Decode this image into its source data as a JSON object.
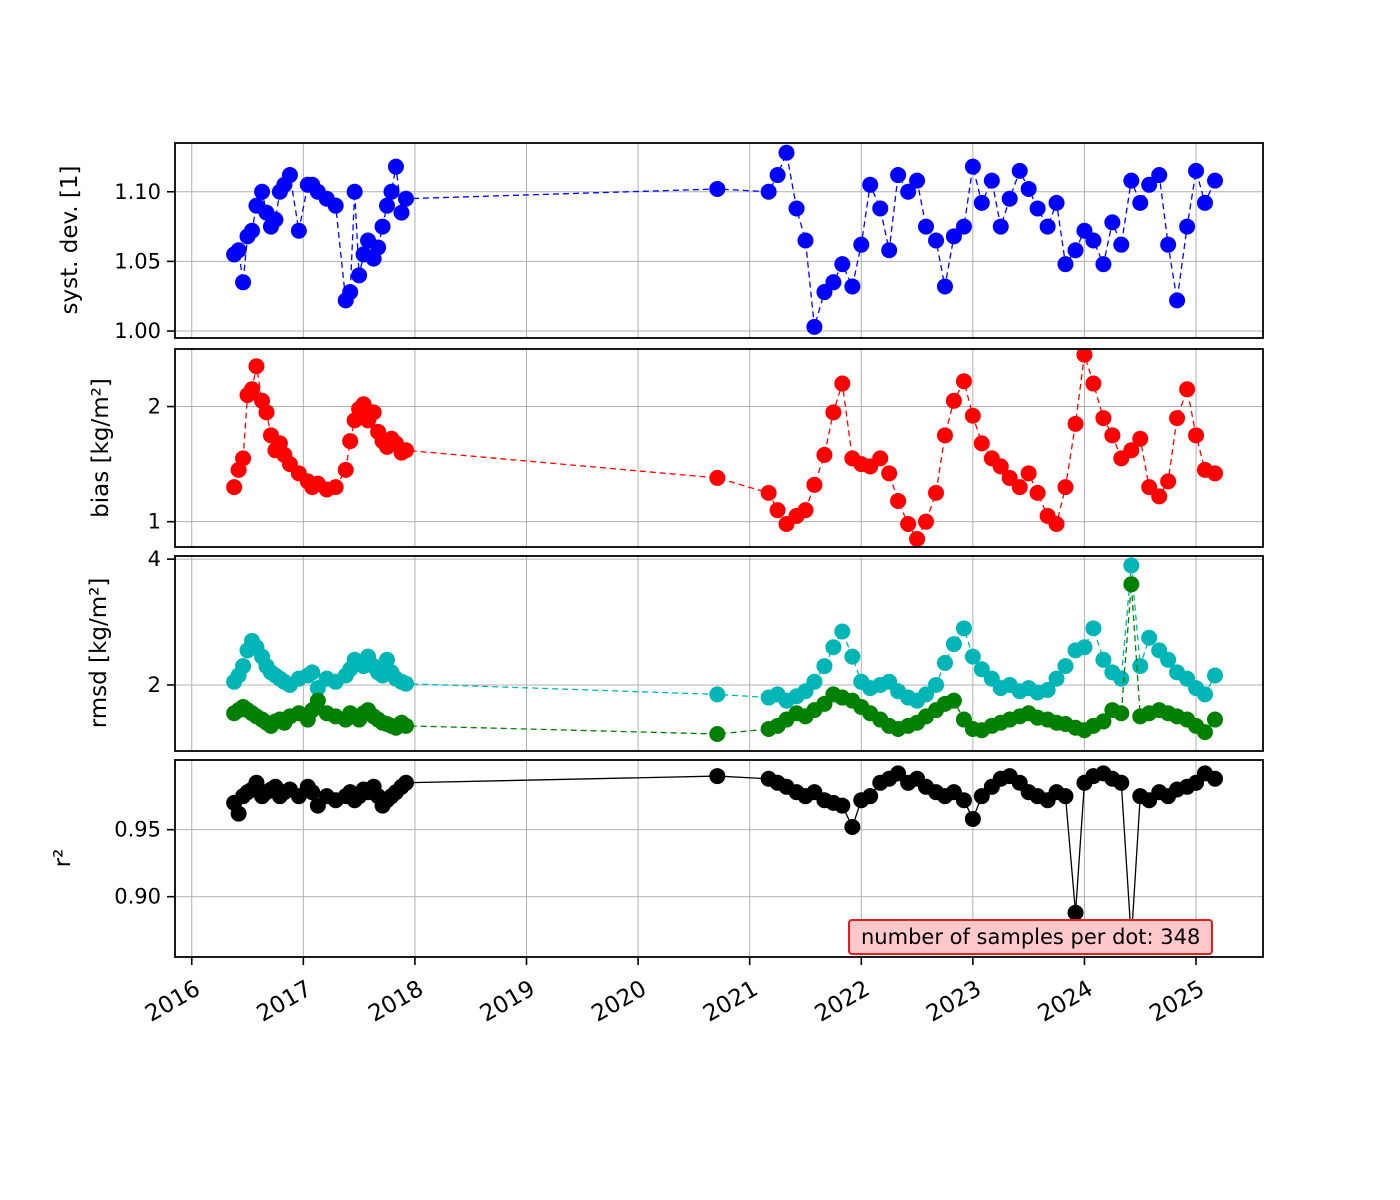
{
  "chart_data": {
    "type": "scatter",
    "description": "Four stacked time-series panels sharing one x axis (years)",
    "shared_x": {
      "lim": [
        2015.85,
        2025.6
      ],
      "ticks": [
        2016,
        2017,
        2018,
        2019,
        2020,
        2021,
        2022,
        2023,
        2024,
        2025
      ],
      "tick_labels": [
        "2016",
        "2017",
        "2018",
        "2019",
        "2020",
        "2021",
        "2022",
        "2023",
        "2024",
        "2025"
      ],
      "values": [
        2016.38,
        2016.42,
        2016.46,
        2016.5,
        2016.54,
        2016.58,
        2016.63,
        2016.67,
        2016.71,
        2016.75,
        2016.79,
        2016.83,
        2016.88,
        2016.96,
        2017.04,
        2017.08,
        2017.13,
        2017.21,
        2017.29,
        2017.38,
        2017.42,
        2017.46,
        2017.5,
        2017.54,
        2017.58,
        2017.63,
        2017.67,
        2017.71,
        2017.75,
        2017.79,
        2017.83,
        2017.88,
        2017.92,
        2020.71,
        2021.17,
        2021.25,
        2021.33,
        2021.42,
        2021.5,
        2021.58,
        2021.67,
        2021.75,
        2021.83,
        2021.92,
        2022.0,
        2022.08,
        2022.17,
        2022.25,
        2022.33,
        2022.42,
        2022.5,
        2022.58,
        2022.67,
        2022.75,
        2022.83,
        2022.92,
        2023.0,
        2023.08,
        2023.17,
        2023.25,
        2023.33,
        2023.42,
        2023.5,
        2023.58,
        2023.67,
        2023.75,
        2023.83,
        2023.92,
        2024.0,
        2024.08,
        2024.17,
        2024.25,
        2024.33,
        2024.42,
        2024.5,
        2024.58,
        2024.67,
        2024.75,
        2024.83,
        2024.92,
        2025.0,
        2025.08,
        2025.17
      ]
    },
    "panels": [
      {
        "id": "syst-dev",
        "ylabel": "syst. dev. [1]",
        "ylim": [
          0.995,
          1.135
        ],
        "yticks": [
          1.0,
          1.05,
          1.1
        ],
        "ytick_labels": [
          "1.00",
          "1.05",
          "1.10"
        ],
        "series": [
          {
            "name": "syst_dev",
            "color": "#0000ff",
            "line_style": "dashed",
            "values": [
              1.055,
              1.058,
              1.035,
              1.068,
              1.072,
              1.09,
              1.1,
              1.085,
              1.075,
              1.08,
              1.1,
              1.105,
              1.112,
              1.072,
              1.105,
              1.105,
              1.1,
              1.095,
              1.09,
              1.022,
              1.028,
              1.1,
              1.04,
              1.055,
              1.065,
              1.052,
              1.06,
              1.075,
              1.09,
              1.1,
              1.118,
              1.085,
              1.095,
              1.102,
              1.1,
              1.112,
              1.128,
              1.088,
              1.065,
              1.003,
              1.028,
              1.035,
              1.048,
              1.032,
              1.062,
              1.105,
              1.088,
              1.058,
              1.112,
              1.1,
              1.108,
              1.075,
              1.065,
              1.032,
              1.068,
              1.075,
              1.118,
              1.092,
              1.108,
              1.075,
              1.095,
              1.115,
              1.102,
              1.088,
              1.075,
              1.092,
              1.048,
              1.058,
              1.072,
              1.065,
              1.048,
              1.078,
              1.062,
              1.108,
              1.092,
              1.105,
              1.112,
              1.062,
              1.022,
              1.075,
              1.115,
              1.092,
              1.108
            ]
          }
        ]
      },
      {
        "id": "bias",
        "ylabel": "bias [kg/m²]",
        "ylim": [
          0.78,
          2.5
        ],
        "yticks": [
          1,
          2
        ],
        "ytick_labels": [
          "1",
          "2"
        ],
        "series": [
          {
            "name": "bias",
            "color": "#ff0000",
            "line_style": "dashed",
            "values": [
              1.3,
              1.45,
              1.55,
              2.1,
              2.15,
              2.35,
              2.05,
              1.95,
              1.75,
              1.62,
              1.68,
              1.58,
              1.5,
              1.42,
              1.35,
              1.3,
              1.33,
              1.28,
              1.3,
              1.45,
              1.7,
              1.88,
              1.98,
              2.02,
              1.88,
              1.95,
              1.78,
              1.7,
              1.65,
              1.72,
              1.68,
              1.6,
              1.62,
              1.38,
              1.25,
              1.1,
              0.98,
              1.05,
              1.1,
              1.32,
              1.58,
              1.95,
              2.2,
              1.55,
              1.5,
              1.48,
              1.55,
              1.42,
              1.18,
              0.98,
              0.85,
              1.0,
              1.25,
              1.75,
              2.05,
              2.22,
              1.92,
              1.68,
              1.55,
              1.48,
              1.38,
              1.3,
              1.42,
              1.25,
              1.05,
              0.98,
              1.3,
              1.85,
              2.45,
              2.2,
              1.9,
              1.75,
              1.55,
              1.62,
              1.72,
              1.3,
              1.22,
              1.35,
              1.9,
              2.15,
              1.75,
              1.45,
              1.42
            ]
          }
        ]
      },
      {
        "id": "rmsd",
        "ylabel": "rmsd [kg/m²]",
        "ylim": [
          0.95,
          4.05
        ],
        "yticks": [
          2,
          4
        ],
        "ytick_labels": [
          "2",
          "4"
        ],
        "series": [
          {
            "name": "rmsd_total",
            "color": "#00b5b5",
            "line_style": "dashed",
            "values": [
              2.05,
              2.15,
              2.3,
              2.55,
              2.7,
              2.6,
              2.45,
              2.3,
              2.2,
              2.15,
              2.1,
              2.05,
              2.0,
              2.1,
              2.15,
              2.2,
              1.95,
              2.1,
              2.05,
              2.15,
              2.25,
              2.4,
              2.35,
              2.3,
              2.45,
              2.3,
              2.2,
              2.15,
              2.4,
              2.2,
              2.1,
              2.05,
              2.02,
              1.85,
              1.8,
              1.85,
              1.75,
              1.82,
              1.9,
              2.05,
              2.3,
              2.6,
              2.85,
              2.45,
              2.05,
              1.95,
              2.0,
              2.05,
              1.9,
              1.8,
              1.75,
              1.85,
              2.0,
              2.35,
              2.65,
              2.9,
              2.45,
              2.25,
              2.1,
              1.95,
              2.0,
              1.9,
              1.95,
              1.88,
              1.92,
              2.1,
              2.3,
              2.55,
              2.6,
              2.9,
              2.4,
              2.2,
              2.1,
              3.9,
              2.3,
              2.75,
              2.55,
              2.4,
              2.2,
              2.1,
              1.95,
              1.85,
              2.15
            ]
          },
          {
            "name": "rmsd_unbiased",
            "color": "#008000",
            "line_style": "dashed",
            "values": [
              1.55,
              1.6,
              1.65,
              1.6,
              1.55,
              1.5,
              1.45,
              1.4,
              1.35,
              1.42,
              1.45,
              1.4,
              1.5,
              1.55,
              1.45,
              1.6,
              1.75,
              1.55,
              1.5,
              1.45,
              1.55,
              1.5,
              1.45,
              1.55,
              1.6,
              1.5,
              1.45,
              1.4,
              1.38,
              1.35,
              1.32,
              1.4,
              1.35,
              1.22,
              1.3,
              1.35,
              1.45,
              1.55,
              1.5,
              1.6,
              1.7,
              1.85,
              1.8,
              1.75,
              1.65,
              1.55,
              1.45,
              1.35,
              1.3,
              1.35,
              1.4,
              1.5,
              1.6,
              1.7,
              1.75,
              1.45,
              1.3,
              1.28,
              1.35,
              1.4,
              1.45,
              1.5,
              1.55,
              1.48,
              1.45,
              1.4,
              1.38,
              1.32,
              1.28,
              1.35,
              1.42,
              1.6,
              1.55,
              3.6,
              1.5,
              1.55,
              1.6,
              1.55,
              1.5,
              1.45,
              1.35,
              1.25,
              1.45
            ]
          }
        ]
      },
      {
        "id": "r2",
        "ylabel": "r²",
        "ylim": [
          0.855,
          1.002
        ],
        "yticks": [
          0.9,
          0.95
        ],
        "ytick_labels": [
          "0.90",
          "0.95"
        ],
        "series": [
          {
            "name": "r_squared",
            "color": "#000000",
            "line_style": "solid",
            "values": [
              0.97,
              0.962,
              0.975,
              0.978,
              0.98,
              0.985,
              0.975,
              0.978,
              0.98,
              0.982,
              0.975,
              0.978,
              0.98,
              0.975,
              0.982,
              0.978,
              0.968,
              0.975,
              0.972,
              0.975,
              0.978,
              0.972,
              0.975,
              0.98,
              0.978,
              0.982,
              0.975,
              0.968,
              0.972,
              0.975,
              0.978,
              0.982,
              0.985,
              0.99,
              0.988,
              0.985,
              0.982,
              0.978,
              0.975,
              0.978,
              0.972,
              0.97,
              0.968,
              0.952,
              0.972,
              0.975,
              0.985,
              0.988,
              0.992,
              0.985,
              0.988,
              0.982,
              0.978,
              0.975,
              0.978,
              0.972,
              0.958,
              0.975,
              0.982,
              0.988,
              0.99,
              0.985,
              0.978,
              0.975,
              0.972,
              0.978,
              0.975,
              0.888,
              0.985,
              0.99,
              0.992,
              0.988,
              0.985,
              0.868,
              0.975,
              0.972,
              0.978,
              0.975,
              0.98,
              0.982,
              0.985,
              0.992,
              0.988
            ]
          }
        ]
      }
    ],
    "annotation": {
      "text": "number of samples per dot: 348",
      "face_color": "#ffc8cb",
      "border_color": "#e02020"
    },
    "style": {
      "grid_color": "#b0b0b0",
      "spine_color": "#000000",
      "marker_radius": 8
    }
  }
}
